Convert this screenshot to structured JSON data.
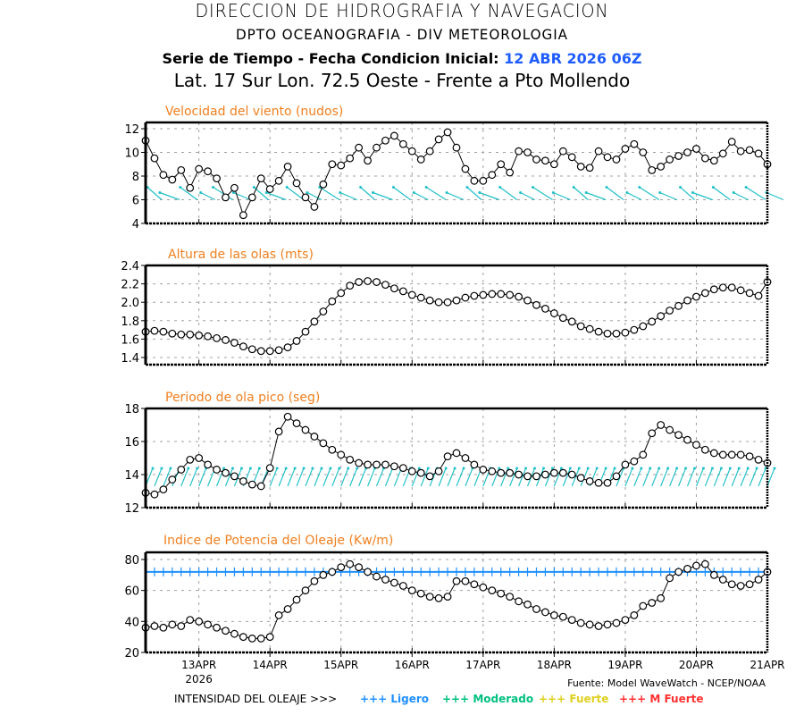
{
  "header": {
    "title": "DIRECCION DE HIDROGRAFIA Y NAVEGACION",
    "subtitle": "DPTO OCEANOGRAFIA - DIV METEOROLOGIA",
    "series_label": "Serie de Tiempo - Fecha Condicion Inicial:",
    "init_date": "12 ABR 2026 06Z",
    "location": "Lat. 17 Sur  Lon. 72.5 Oeste - Frente a Pto Mollendo"
  },
  "footer": {
    "source": "Fuente: Model WaveWatch - NCEP/NOAA",
    "legend_label": "INTENSIDAD DEL OLEAJE >>>",
    "legend_items": [
      {
        "symbol": "+++",
        "label": "Ligero",
        "color": "#1e90ff"
      },
      {
        "symbol": "+++",
        "label": "Moderado",
        "color": "#00c080"
      },
      {
        "symbol": "+++",
        "label": "Fuerte",
        "color": "#e0d020"
      },
      {
        "symbol": "+++",
        "label": "M Fuerte",
        "color": "#ff3030"
      }
    ]
  },
  "chart_data": [
    {
      "type": "line",
      "title": "Velocidad del viento (nudos)",
      "ylim": [
        4,
        12
      ],
      "yticks": [
        4,
        6,
        8,
        10,
        12
      ],
      "ytick_labels": [
        "4",
        "6",
        "8",
        "10",
        "12"
      ],
      "grid": true,
      "x_start": "2026-04-12 06Z",
      "x_step_hours": 3,
      "xtick_labels": [
        "13APR",
        "14APR",
        "15APR",
        "16APR",
        "17APR",
        "18APR",
        "19APR",
        "20APR",
        "21APR"
      ],
      "xtick_year": "2026",
      "line_color": "#000000",
      "marker": "circle",
      "values": [
        11.0,
        9.5,
        8.1,
        7.7,
        8.5,
        7.0,
        8.6,
        8.4,
        7.8,
        6.2,
        7.0,
        4.7,
        6.2,
        7.8,
        6.9,
        7.6,
        8.8,
        7.4,
        6.2,
        5.4,
        7.3,
        9.0,
        8.9,
        9.5,
        10.4,
        9.3,
        10.4,
        11.0,
        11.4,
        10.7,
        10.1,
        9.4,
        10.1,
        11.1,
        11.7,
        10.4,
        8.6,
        7.6,
        7.6,
        8.1,
        9.0,
        8.3,
        10.1,
        10.0,
        9.4,
        9.3,
        9.0,
        10.1,
        9.6,
        8.8,
        8.7,
        10.1,
        9.6,
        9.4,
        10.3,
        10.7,
        10.0,
        8.5,
        8.8,
        9.4,
        9.7,
        10.0,
        10.3,
        9.5,
        9.3,
        9.9,
        10.9,
        10.1,
        10.2,
        9.9,
        9.0
      ],
      "direction_arrows": {
        "color": "#20c0c8",
        "baseline_value": 6,
        "description": "wind direction vectors (from SE, pointing NW)"
      }
    },
    {
      "type": "line",
      "title": "Altura de las olas (mts)",
      "ylim": [
        1.3,
        2.4
      ],
      "yticks": [
        1.4,
        1.6,
        1.8,
        2.0,
        2.2,
        2.4
      ],
      "ytick_labels": [
        "1.4",
        "1.6",
        "1.8",
        "2.0",
        "2.2",
        "2.4"
      ],
      "grid": true,
      "line_color": "#000000",
      "marker": "circle",
      "values": [
        1.68,
        1.69,
        1.68,
        1.66,
        1.65,
        1.65,
        1.64,
        1.63,
        1.61,
        1.59,
        1.56,
        1.52,
        1.49,
        1.47,
        1.47,
        1.48,
        1.51,
        1.58,
        1.68,
        1.79,
        1.9,
        2.01,
        2.1,
        2.18,
        2.22,
        2.23,
        2.22,
        2.19,
        2.15,
        2.12,
        2.08,
        2.05,
        2.02,
        2.0,
        2.0,
        2.02,
        2.05,
        2.07,
        2.08,
        2.09,
        2.09,
        2.08,
        2.06,
        2.02,
        1.97,
        1.93,
        1.88,
        1.83,
        1.79,
        1.74,
        1.71,
        1.68,
        1.66,
        1.66,
        1.67,
        1.7,
        1.74,
        1.79,
        1.85,
        1.91,
        1.96,
        2.02,
        2.06,
        2.1,
        2.14,
        2.16,
        2.16,
        2.13,
        2.1,
        2.07,
        2.22
      ]
    },
    {
      "type": "line",
      "title": "Periodo de ola pico (seg)",
      "ylim": [
        12,
        18
      ],
      "yticks": [
        12,
        14,
        16,
        18
      ],
      "ytick_labels": [
        "12",
        "14",
        "16",
        "18"
      ],
      "grid": true,
      "line_color": "#000000",
      "marker": "circle",
      "values": [
        12.9,
        12.8,
        13.1,
        13.7,
        14.3,
        14.9,
        15.0,
        14.6,
        14.3,
        14.1,
        13.9,
        13.6,
        13.4,
        13.3,
        14.4,
        16.6,
        17.5,
        17.1,
        16.7,
        16.3,
        15.9,
        15.5,
        15.2,
        14.9,
        14.7,
        14.6,
        14.6,
        14.6,
        14.5,
        14.4,
        14.2,
        14.1,
        13.9,
        14.2,
        15.1,
        15.3,
        15.0,
        14.6,
        14.3,
        14.2,
        14.1,
        14.1,
        14.0,
        13.9,
        13.9,
        14.0,
        14.1,
        14.1,
        14.0,
        13.8,
        13.6,
        13.5,
        13.5,
        13.9,
        14.6,
        14.8,
        15.2,
        16.5,
        17.0,
        16.7,
        16.4,
        16.1,
        15.8,
        15.5,
        15.3,
        15.2,
        15.2,
        15.2,
        15.1,
        14.9,
        14.7
      ],
      "direction_arrows": {
        "color": "#20c0c8",
        "baseline_value": 13.3,
        "description": "wave direction vectors (from SW, pointing NE)"
      }
    },
    {
      "type": "line",
      "title": "Indice de Potencia del Oleaje (Kw/m)",
      "ylim": [
        20,
        85
      ],
      "yticks": [
        20,
        40,
        60,
        80
      ],
      "ytick_labels": [
        "20",
        "40",
        "60",
        "80"
      ],
      "grid": true,
      "line_color": "#000000",
      "marker": "circle",
      "values": [
        36,
        37,
        36,
        38,
        37,
        41,
        40,
        38,
        36,
        34,
        32,
        30,
        29,
        29,
        30,
        44,
        48,
        54,
        60,
        66,
        70,
        72,
        75,
        77,
        75,
        72,
        69,
        67,
        65,
        63,
        60,
        58,
        56,
        55,
        56,
        66,
        66,
        64,
        62,
        60,
        58,
        56,
        53,
        51,
        48,
        46,
        44,
        43,
        41,
        39,
        38,
        37,
        38,
        39,
        41,
        44,
        50,
        52,
        55,
        68,
        72,
        74,
        76,
        77,
        70,
        67,
        64,
        63,
        64,
        67,
        72
      ],
      "threshold": {
        "value": 72,
        "label": "Ligero",
        "color": "#1e90ff"
      }
    }
  ]
}
